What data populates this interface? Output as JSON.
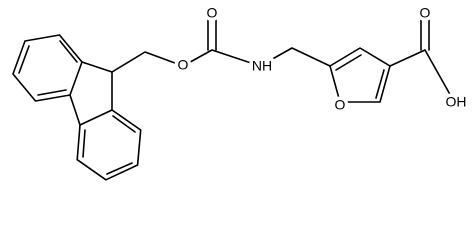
{
  "atoms": {
    "ester_oxygen": "O",
    "carbonyl_oxygen": "O",
    "amine": "NH",
    "furan_oxygen": "O",
    "acid_carbonyl_oxygen": "O",
    "hydroxyl": "OH"
  }
}
